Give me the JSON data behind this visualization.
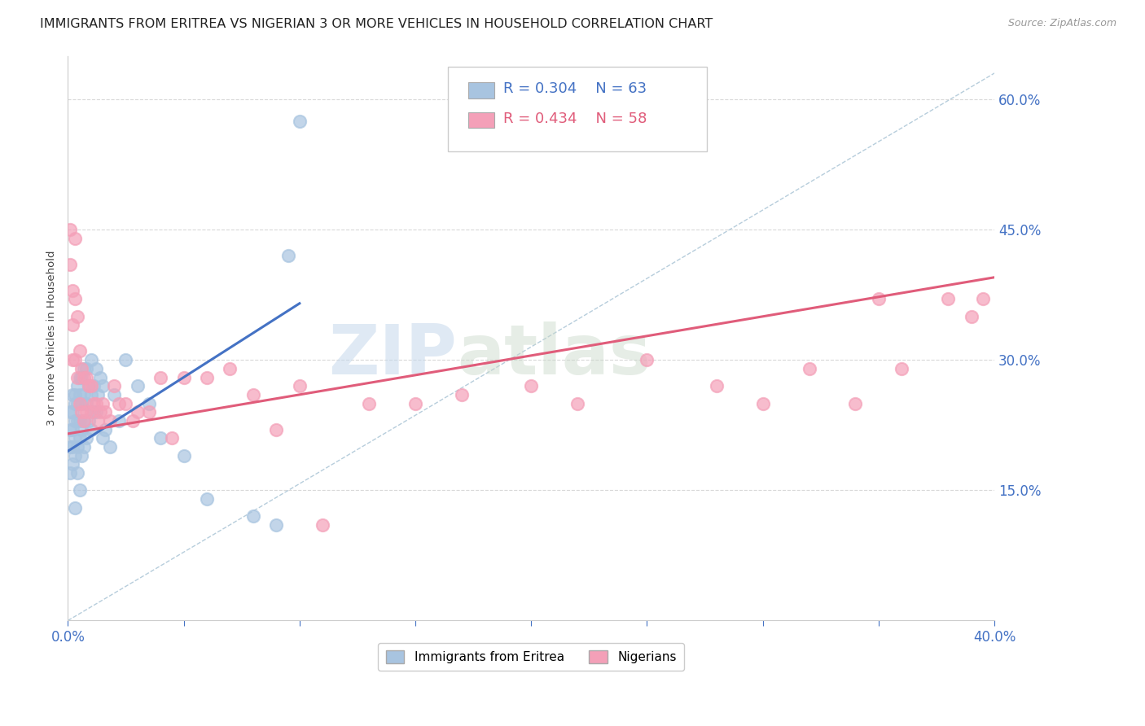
{
  "title": "IMMIGRANTS FROM ERITREA VS NIGERIAN 3 OR MORE VEHICLES IN HOUSEHOLD CORRELATION CHART",
  "source": "Source: ZipAtlas.com",
  "ylabel": "3 or more Vehicles in Household",
  "xlim": [
    0.0,
    0.4
  ],
  "ylim": [
    0.0,
    0.65
  ],
  "xticks": [
    0.0,
    0.05,
    0.1,
    0.15,
    0.2,
    0.25,
    0.3,
    0.35,
    0.4
  ],
  "yticks": [
    0.0,
    0.15,
    0.3,
    0.45,
    0.6
  ],
  "yticklabels": [
    "",
    "15.0%",
    "30.0%",
    "45.0%",
    "60.0%"
  ],
  "legend1_R": "0.304",
  "legend1_N": "63",
  "legend2_R": "0.434",
  "legend2_N": "58",
  "blue_color": "#a8c4e0",
  "pink_color": "#f4a0b8",
  "blue_line_color": "#4472c4",
  "pink_line_color": "#e05c7a",
  "dashed_line_color": "#afc8d8",
  "watermark_zip": "ZIP",
  "watermark_atlas": "atlas",
  "legend_entries": [
    "Immigrants from Eritrea",
    "Nigerians"
  ],
  "background_color": "#ffffff",
  "grid_color": "#d8d8d8",
  "axis_color": "#cccccc",
  "tick_color": "#4472c4",
  "blue_scatter_x": [
    0.001,
    0.001,
    0.001,
    0.001,
    0.002,
    0.002,
    0.002,
    0.002,
    0.002,
    0.003,
    0.003,
    0.003,
    0.003,
    0.003,
    0.003,
    0.004,
    0.004,
    0.004,
    0.004,
    0.004,
    0.005,
    0.005,
    0.005,
    0.005,
    0.005,
    0.006,
    0.006,
    0.006,
    0.006,
    0.007,
    0.007,
    0.007,
    0.007,
    0.008,
    0.008,
    0.008,
    0.009,
    0.009,
    0.01,
    0.01,
    0.01,
    0.011,
    0.011,
    0.012,
    0.012,
    0.013,
    0.014,
    0.015,
    0.015,
    0.016,
    0.018,
    0.02,
    0.022,
    0.025,
    0.03,
    0.035,
    0.04,
    0.05,
    0.06,
    0.08,
    0.09,
    0.095,
    0.1
  ],
  "blue_scatter_y": [
    0.24,
    0.22,
    0.2,
    0.17,
    0.26,
    0.24,
    0.22,
    0.2,
    0.18,
    0.26,
    0.25,
    0.23,
    0.21,
    0.19,
    0.13,
    0.27,
    0.25,
    0.23,
    0.2,
    0.17,
    0.28,
    0.26,
    0.23,
    0.21,
    0.15,
    0.28,
    0.25,
    0.22,
    0.19,
    0.29,
    0.26,
    0.23,
    0.2,
    0.29,
    0.25,
    0.21,
    0.27,
    0.23,
    0.3,
    0.26,
    0.22,
    0.27,
    0.24,
    0.29,
    0.24,
    0.26,
    0.28,
    0.27,
    0.21,
    0.22,
    0.2,
    0.26,
    0.23,
    0.3,
    0.27,
    0.25,
    0.21,
    0.19,
    0.14,
    0.12,
    0.11,
    0.42,
    0.575
  ],
  "pink_scatter_x": [
    0.001,
    0.001,
    0.002,
    0.002,
    0.002,
    0.003,
    0.003,
    0.003,
    0.004,
    0.004,
    0.005,
    0.005,
    0.006,
    0.006,
    0.007,
    0.007,
    0.008,
    0.008,
    0.009,
    0.01,
    0.01,
    0.011,
    0.012,
    0.013,
    0.014,
    0.015,
    0.016,
    0.018,
    0.02,
    0.022,
    0.025,
    0.028,
    0.03,
    0.035,
    0.04,
    0.045,
    0.05,
    0.06,
    0.07,
    0.08,
    0.09,
    0.1,
    0.11,
    0.13,
    0.15,
    0.17,
    0.2,
    0.22,
    0.25,
    0.28,
    0.3,
    0.32,
    0.34,
    0.35,
    0.36,
    0.38,
    0.39,
    0.395
  ],
  "pink_scatter_y": [
    0.45,
    0.41,
    0.38,
    0.34,
    0.3,
    0.44,
    0.37,
    0.3,
    0.35,
    0.28,
    0.31,
    0.25,
    0.29,
    0.24,
    0.28,
    0.23,
    0.28,
    0.24,
    0.27,
    0.27,
    0.24,
    0.25,
    0.25,
    0.23,
    0.24,
    0.25,
    0.24,
    0.23,
    0.27,
    0.25,
    0.25,
    0.23,
    0.24,
    0.24,
    0.28,
    0.21,
    0.28,
    0.28,
    0.29,
    0.26,
    0.22,
    0.27,
    0.11,
    0.25,
    0.25,
    0.26,
    0.27,
    0.25,
    0.3,
    0.27,
    0.25,
    0.29,
    0.25,
    0.37,
    0.29,
    0.37,
    0.35,
    0.37
  ],
  "blue_line_x": [
    0.0,
    0.1
  ],
  "blue_line_y": [
    0.195,
    0.365
  ],
  "pink_line_x": [
    0.0,
    0.4
  ],
  "pink_line_y": [
    0.215,
    0.395
  ],
  "dashed_line_x": [
    0.0,
    0.4
  ],
  "dashed_line_y": [
    0.0,
    0.63
  ],
  "title_fontsize": 11.5,
  "axis_label_fontsize": 9.5
}
